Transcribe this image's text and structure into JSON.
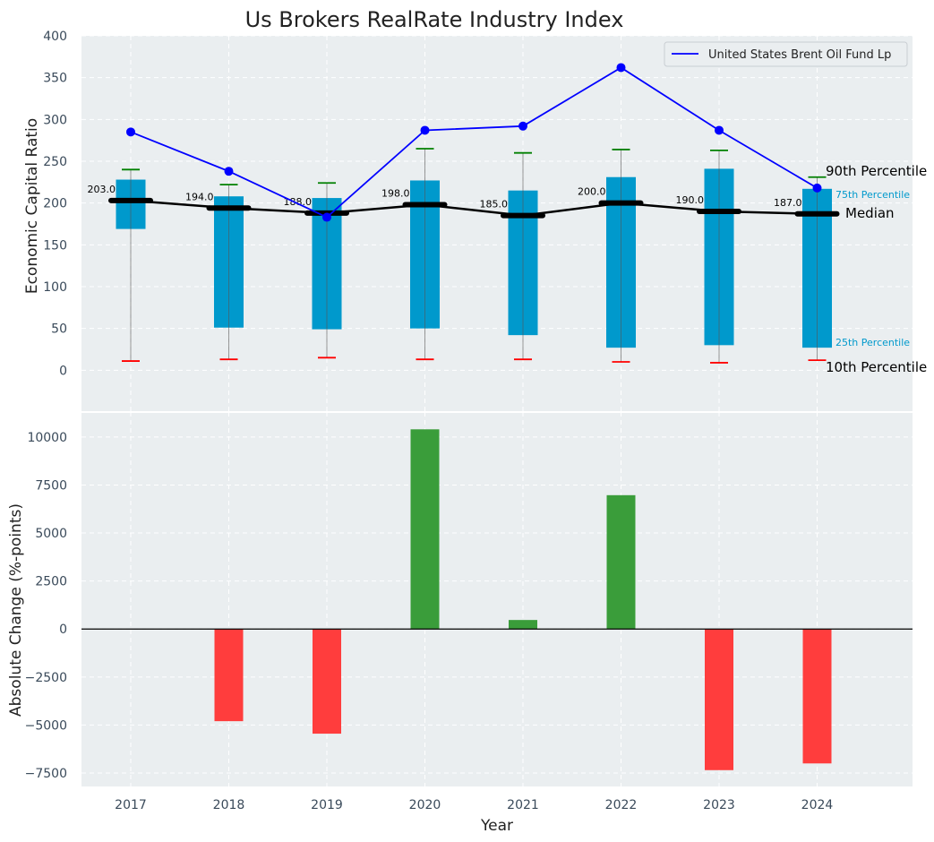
{
  "chart_data": {
    "title": "Us Brokers RealRate Industry Index",
    "xlabel": "Year",
    "years": [
      "2017",
      "2018",
      "2019",
      "2020",
      "2021",
      "2022",
      "2023",
      "2024"
    ],
    "top": {
      "type": "box-percentile",
      "ylabel": "Economic Capital Ratio",
      "ylim": [
        -50,
        400
      ],
      "yticks": [
        "0",
        "50",
        "100",
        "150",
        "200",
        "250",
        "300",
        "350",
        "400"
      ],
      "p10": [
        11,
        13,
        15,
        13,
        13,
        10,
        9,
        12
      ],
      "p25": [
        169,
        51,
        49,
        50,
        42,
        27,
        30,
        27
      ],
      "median": [
        203,
        194,
        188,
        198,
        185,
        200,
        190,
        187
      ],
      "median_labels": [
        "203.0",
        "194.0",
        "188.0",
        "198.0",
        "185.0",
        "200.0",
        "190.0",
        "187.0"
      ],
      "p75": [
        228,
        208,
        206,
        227,
        215,
        231,
        241,
        217
      ],
      "p90": [
        240,
        222,
        224,
        265,
        260,
        264,
        263,
        231
      ],
      "series": [
        {
          "name": "United States Brent Oil Fund Lp",
          "values": [
            285,
            238,
            183,
            287,
            292,
            362,
            287,
            218
          ],
          "color": "#0000ff"
        }
      ],
      "annotations": {
        "p90": "90th Percentile",
        "p75": "75th Percentile",
        "median": "Median",
        "p25": "25th Percentile",
        "p10": "10th Percentile"
      },
      "legend": "upper-right",
      "grid": true
    },
    "bottom": {
      "type": "bar",
      "ylabel": "Absolute Change (%-points)",
      "ylim": [
        -8200,
        11300
      ],
      "yticks": [
        "−7500",
        "−5000",
        "−2500",
        "0",
        "2500",
        "5000",
        "7500",
        "10000"
      ],
      "values": [
        0,
        -4800,
        -5450,
        10400,
        470,
        6970,
        -7350,
        -7000
      ],
      "grid": true
    },
    "colors": {
      "background": "#eaeef0",
      "box": "#0099cc",
      "median": "#000000",
      "p90_cap": "#008000",
      "p10_cap": "#ff0000",
      "positive_bar": "#3a9d3a",
      "negative_bar": "#ff3d3d",
      "series_line": "#0000ff",
      "p75_label": "#0099cc",
      "p25_label": "#0099cc"
    }
  }
}
